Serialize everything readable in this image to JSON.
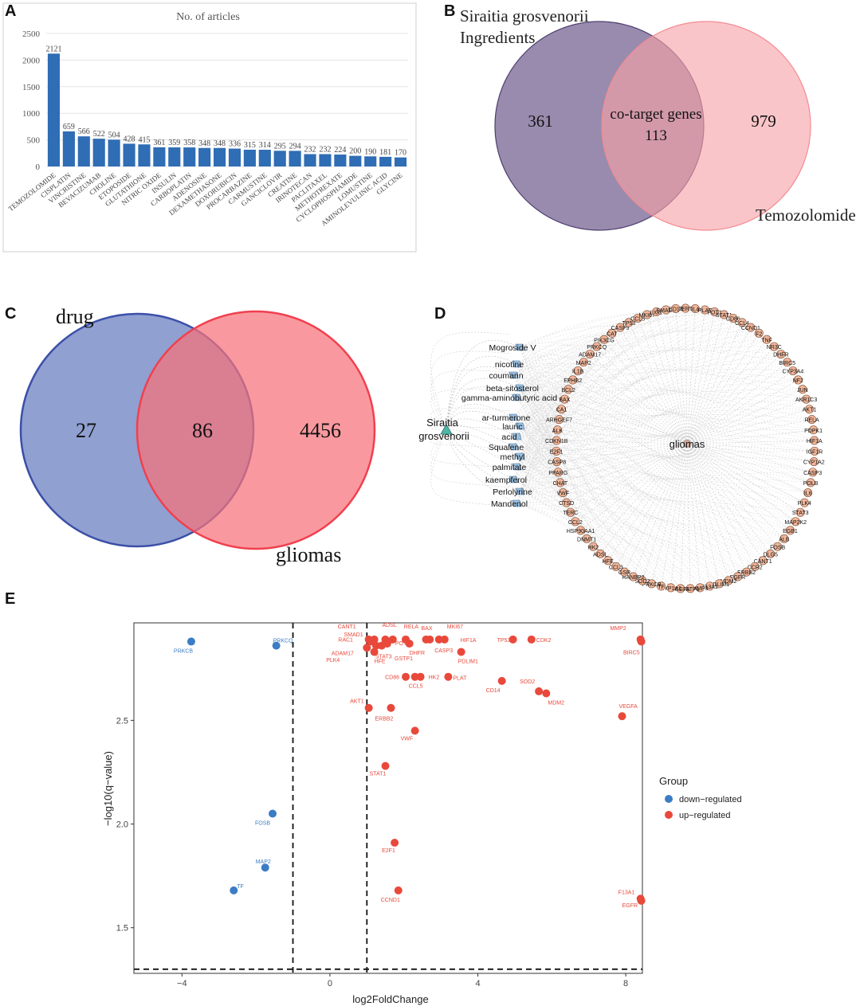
{
  "panels": {
    "a": "A",
    "b": "B",
    "c": "C",
    "d": "D",
    "e": "E"
  },
  "chart_data": [
    {
      "type": "bar",
      "panel": "A",
      "title": "No. of articles",
      "categories": [
        "TEMOZOLOMIDE",
        "CISPLATIN",
        "VINCRISTINE",
        "BEVACIZUMAB",
        "CHOLINE",
        "ETOPOSIDE",
        "GLUTATHIONE",
        "NITRIC OXIDE",
        "INSULIN",
        "CARBOPLATIN",
        "ADENOSINE",
        "DEXAMETHASONE",
        "DOXORUBICIN",
        "PROCARBAZINE",
        "CARMUSTINE",
        "GANCICLOVIR",
        "CREATINE",
        "IRINOTECAN",
        "PACLITAXEL",
        "METHOTREXATE",
        "CYCLOPHOSPHAMIDE",
        "LOMUSTINE",
        "AMINOLEVULINIC ACID",
        "GLYCINE"
      ],
      "values": [
        2121,
        659,
        566,
        522,
        504,
        428,
        415,
        361,
        359,
        358,
        348,
        348,
        336,
        315,
        314,
        295,
        294,
        232,
        232,
        224,
        200,
        190,
        181,
        170
      ],
      "ylim": [
        0,
        2500
      ],
      "yticks": [
        "0",
        "500",
        "1000",
        "1500",
        "2000",
        "2500"
      ],
      "color": "#2f6db5"
    },
    {
      "type": "venn",
      "panel": "B",
      "sets": [
        {
          "label_line1": "Siraitia grosvenorii",
          "label_line2": "Ingredients",
          "only": "361",
          "color": "#6e5a8c"
        },
        {
          "label": "Temozolomide",
          "only": "979",
          "color": "#f7a1a6"
        }
      ],
      "overlap_label": "co-target genes",
      "overlap": "113"
    },
    {
      "type": "venn",
      "panel": "C",
      "sets": [
        {
          "label": "drug",
          "only": "27",
          "color": "#7185c4"
        },
        {
          "label": "gliomas",
          "only": "4456",
          "color": "#f7727a"
        }
      ],
      "overlap": "86"
    },
    {
      "type": "network",
      "panel": "D",
      "source": "Siraitia grosvenorii",
      "target": "gliomas",
      "compounds": [
        "Mogroside V",
        "nicotine",
        "coumarin",
        "beta-sitosterol",
        "gamma-aminobutyric acid",
        "ar-turmerone",
        "lauric",
        "acid",
        "Squalene",
        "methyl",
        "palmitate",
        "kaempferol",
        "Perlolyrine",
        "Mandenol"
      ],
      "genes": [
        "TERT",
        "IL4",
        "PLAT",
        "POT1",
        "STAT1",
        "CD86",
        "CCL4",
        "CCND1",
        "F2",
        "TNF",
        "NR3C",
        "DHFR",
        "BIRC5",
        "CYP3A4",
        "NF2",
        "JUN",
        "AKR1C3",
        "AKT1",
        "RELA",
        "PDPK1",
        "HIF1A",
        "IGF1R",
        "CYP1A2",
        "CASP3",
        "POLB",
        "IL6",
        "PLK4",
        "STAT3",
        "MAP2K2",
        "EGB1",
        "ALB",
        "FOSB",
        "DLG5",
        "CANT1",
        "CCR2",
        "ERBB2",
        "EGFR",
        "MDM2",
        "PDLIM1",
        "F13A1",
        "MMP3",
        "GSTP1",
        "VEGFA",
        "CYP1A1",
        "TF",
        "PRKCB",
        "SOD2",
        "RANBP2",
        "GSR",
        "CCL3",
        "HFE",
        "ADSL",
        "HK2",
        "DNMT1",
        "HSP90AA1",
        "CCL2",
        "TERC",
        "CTSD",
        "VWF",
        "CHAT",
        "PPARG",
        "CASP8",
        "E2F1",
        "CDKN1B",
        "ALK",
        "ARHGEF7",
        "CA1",
        "BAX",
        "BCL2",
        "EPHB2",
        "IL1B",
        "MAP2",
        "ADAM17",
        "PRKCQ",
        "PIK3CG",
        "CAT",
        "CASP9",
        "TP53",
        "CCL5",
        "MKI67",
        "LIG1",
        "SMAD1",
        "CD14"
      ]
    },
    {
      "type": "scatter",
      "panel": "E",
      "xlabel": "log2FoldChange",
      "ylabel": "−log10(q−value)",
      "xlim": [
        -5.3,
        8.45
      ],
      "ylim": [
        1.28,
        2.97
      ],
      "xticks": [
        -4,
        0,
        4,
        8
      ],
      "xtick_labels": [
        "−4",
        "0",
        "4",
        "8"
      ],
      "yticks": [
        1.5,
        2.0,
        2.5
      ],
      "ytick_labels": [
        "1.5",
        "2.0",
        "2.5"
      ],
      "thresholds": {
        "x": [
          -1,
          1
        ],
        "y": 1.3
      },
      "legend_title": "Group",
      "groups": [
        {
          "name": "down−regulated",
          "color": "#3b7cc4"
        },
        {
          "name": "up−regulated",
          "color": "#e8493b"
        }
      ],
      "points": [
        {
          "label": "PRKCB",
          "x": -3.75,
          "y": 2.88,
          "group": 0
        },
        {
          "label": "PRKCQ",
          "x": -1.45,
          "y": 2.86,
          "group": 0
        },
        {
          "label": "FOSB",
          "x": -1.55,
          "y": 2.05,
          "group": 0
        },
        {
          "label": "MAP2",
          "x": -1.75,
          "y": 1.79,
          "group": 0
        },
        {
          "label": "TF",
          "x": -2.6,
          "y": 1.68,
          "group": 0
        },
        {
          "label": "CANT1",
          "x": 1.05,
          "y": 2.89,
          "group": 1
        },
        {
          "label": "RAC1",
          "x": 1.1,
          "y": 2.88,
          "group": 1
        },
        {
          "label": "SMAD1",
          "x": 1.2,
          "y": 2.89,
          "group": 1
        },
        {
          "label": "ADSL",
          "x": 1.5,
          "y": 2.89,
          "group": 1
        },
        {
          "label": "RELA",
          "x": 1.7,
          "y": 2.89,
          "group": 1
        },
        {
          "label": "POT1",
          "x": 1.55,
          "y": 2.87,
          "group": 1
        },
        {
          "label": "STAT3",
          "x": 1.4,
          "y": 2.86,
          "group": 1
        },
        {
          "label": "ADAM17",
          "x": 1.25,
          "y": 2.86,
          "group": 1
        },
        {
          "label": "PLK4",
          "x": 1.0,
          "y": 2.85,
          "group": 1
        },
        {
          "label": "HFE",
          "x": 1.2,
          "y": 2.83,
          "group": 1
        },
        {
          "label": "BAX",
          "x": 2.6,
          "y": 2.89,
          "group": 1
        },
        {
          "label": "MKI67",
          "x": 2.95,
          "y": 2.89,
          "group": 1
        },
        {
          "label": "DHFR",
          "x": 2.15,
          "y": 2.87,
          "group": 1
        },
        {
          "label": "CASP3",
          "x": 2.7,
          "y": 2.89,
          "group": 1
        },
        {
          "label": "HIF1A",
          "x": 3.1,
          "y": 2.89,
          "group": 1
        },
        {
          "label": "GSTP1",
          "x": 2.05,
          "y": 2.89,
          "group": 1
        },
        {
          "label": "PDLIM1",
          "x": 3.55,
          "y": 2.83,
          "group": 1
        },
        {
          "label": "TP53",
          "x": 4.95,
          "y": 2.89,
          "group": 1
        },
        {
          "label": "CDK2",
          "x": 5.45,
          "y": 2.89,
          "group": 1
        },
        {
          "label": "MMP2",
          "x": 8.4,
          "y": 2.89,
          "group": 1
        },
        {
          "label": "BIRC5",
          "x": 8.42,
          "y": 2.88,
          "group": 1
        },
        {
          "label": "CD86",
          "x": 2.05,
          "y": 2.71,
          "group": 1
        },
        {
          "label": "CCL5",
          "x": 2.3,
          "y": 2.71,
          "group": 1
        },
        {
          "label": "HK2",
          "x": 2.45,
          "y": 2.71,
          "group": 1
        },
        {
          "label": "PLAT",
          "x": 3.2,
          "y": 2.71,
          "group": 1
        },
        {
          "label": "CD14",
          "x": 4.65,
          "y": 2.69,
          "group": 1
        },
        {
          "label": "SOD2",
          "x": 5.65,
          "y": 2.64,
          "group": 1
        },
        {
          "label": "MDM2",
          "x": 5.85,
          "y": 2.63,
          "group": 1
        },
        {
          "label": "AKT1",
          "x": 1.05,
          "y": 2.56,
          "group": 1
        },
        {
          "label": "ERBB2",
          "x": 1.65,
          "y": 2.56,
          "group": 1
        },
        {
          "label": "VEGFA",
          "x": 7.9,
          "y": 2.52,
          "group": 1
        },
        {
          "label": "VWF",
          "x": 2.3,
          "y": 2.45,
          "group": 1
        },
        {
          "label": "STAT1",
          "x": 1.5,
          "y": 2.28,
          "group": 1
        },
        {
          "label": "E2F1",
          "x": 1.75,
          "y": 1.91,
          "group": 1
        },
        {
          "label": "CCND1",
          "x": 1.85,
          "y": 1.68,
          "group": 1
        },
        {
          "label": "F13A1",
          "x": 8.4,
          "y": 1.64,
          "group": 1
        },
        {
          "label": "EGFR",
          "x": 8.42,
          "y": 1.63,
          "group": 1
        }
      ]
    }
  ]
}
